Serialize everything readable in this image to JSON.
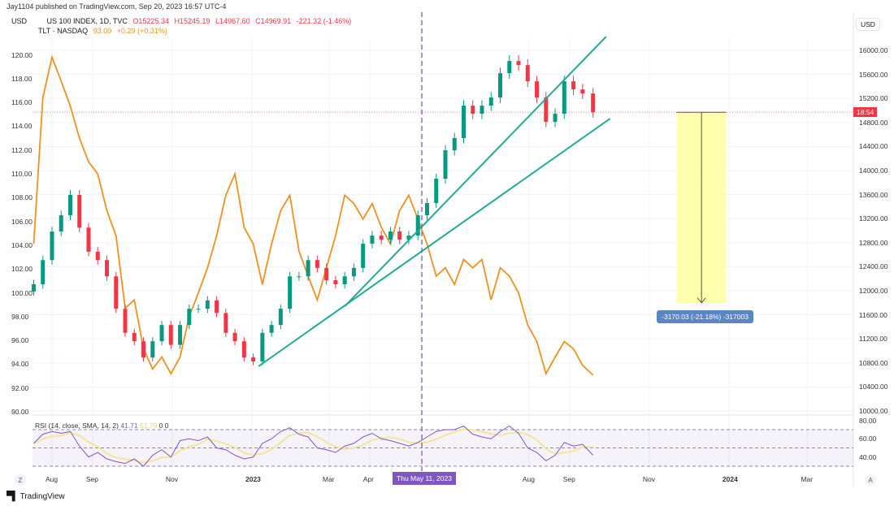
{
  "header": {
    "published": "Jay1104 published on TradingView.com, Sep 20, 2023 16:57 UTC-4",
    "currency_left": "USD",
    "currency_right": "USD",
    "main_symbol": "US 100 INDEX, 1D, TVC",
    "ohlc": {
      "o": "O15225.34",
      "h": "H15245.19",
      "l": "L14967.60",
      "c": "C14969.91",
      "change": "-221.32 (-1.46%)"
    },
    "compare_symbol": "TLT · NASDAQ",
    "compare_price": "93.09",
    "compare_change": "+0.29 (+0.31%)"
  },
  "footer": {
    "logo_text": "TradingView",
    "zoom_btn": "Z",
    "auto_btn": "A"
  },
  "colors": {
    "up": "#089981",
    "down": "#f23645",
    "tlt": "#f0901e",
    "trendline": "#22ab94",
    "rsi": "#7e57c2",
    "rsi_sma": "#f3e59a",
    "measure_fill": "#ffff99",
    "measure_label": "#5b86c4"
  },
  "chart_data": {
    "type": "line",
    "grid": true,
    "left_axis": {
      "label": "",
      "ticks": [
        "90.00",
        "92.00",
        "94.00",
        "96.00",
        "98.00",
        "100.00",
        "102.00",
        "104.00",
        "106.00",
        "108.00",
        "110.00",
        "112.00",
        "114.00",
        "116.00",
        "118.00",
        "120.00"
      ],
      "range": [
        90,
        120
      ]
    },
    "right_axis": {
      "ticks": [
        "10000.00",
        "10400.00",
        "10800.00",
        "11200.00",
        "11600.00",
        "12000.00",
        "12400.00",
        "12800.00",
        "13200.00",
        "13600.00",
        "14000.00",
        "14400.00",
        "14800.00",
        "15200.00",
        "15600.00",
        "16000.00"
      ],
      "range": [
        10000,
        16000
      ],
      "last_price_badge": "18:54"
    },
    "x_axis": {
      "ticks": [
        {
          "label": "Aug",
          "date": "2022-08-01"
        },
        {
          "label": "Sep",
          "date": "2022-09-01"
        },
        {
          "label": "Nov",
          "date": "2022-11-01"
        },
        {
          "label": "2023",
          "date": "2023-01-01",
          "bold": true
        },
        {
          "label": "Mar",
          "date": "2023-03-01"
        },
        {
          "label": "Apr",
          "date": "2023-04-01"
        },
        {
          "label": "Aug",
          "date": "2023-08-01"
        },
        {
          "label": "Sep",
          "date": "2023-09-01"
        },
        {
          "label": "Nov",
          "date": "2023-11-01"
        },
        {
          "label": "2024",
          "date": "2024-01-01",
          "bold": true
        },
        {
          "label": "Mar",
          "date": "2024-03-01"
        }
      ],
      "crosshair_date": "2023-05-11",
      "crosshair_label": "Thu May 11, 2023"
    },
    "dates": [
      "2022-07-18",
      "2022-07-25",
      "2022-08-01",
      "2022-08-08",
      "2022-08-15",
      "2022-08-22",
      "2022-08-29",
      "2022-09-05",
      "2022-09-12",
      "2022-09-19",
      "2022-09-26",
      "2022-10-03",
      "2022-10-10",
      "2022-10-17",
      "2022-10-24",
      "2022-10-31",
      "2022-11-07",
      "2022-11-14",
      "2022-11-21",
      "2022-11-28",
      "2022-12-05",
      "2022-12-12",
      "2022-12-19",
      "2022-12-26",
      "2023-01-02",
      "2023-01-09",
      "2023-01-16",
      "2023-01-23",
      "2023-01-30",
      "2023-02-06",
      "2023-02-13",
      "2023-02-20",
      "2023-02-27",
      "2023-03-06",
      "2023-03-13",
      "2023-03-20",
      "2023-03-27",
      "2023-04-03",
      "2023-04-10",
      "2023-04-17",
      "2023-04-24",
      "2023-05-01",
      "2023-05-08",
      "2023-05-15",
      "2023-05-22",
      "2023-05-29",
      "2023-06-05",
      "2023-06-12",
      "2023-06-19",
      "2023-06-26",
      "2023-07-03",
      "2023-07-10",
      "2023-07-17",
      "2023-07-24",
      "2023-07-31",
      "2023-08-07",
      "2023-08-14",
      "2023-08-21",
      "2023-08-28",
      "2023-09-04",
      "2023-09-11",
      "2023-09-19"
    ],
    "series": [
      {
        "name": "US 100 INDEX",
        "axis": "right",
        "style": "candles",
        "values": [
          12108,
          12510,
          12986,
          13256,
          13594,
          13050,
          12650,
          12510,
          12240,
          11700,
          11300,
          11160,
          10890,
          11160,
          11430,
          11100,
          11430,
          11700,
          11700,
          11840,
          11630,
          11300,
          11160,
          10890,
          10824,
          11300,
          11430,
          11700,
          12240,
          12240,
          12510,
          12380,
          12175,
          12108,
          12240,
          12380,
          12783,
          12918,
          12850,
          12986,
          12850,
          12918,
          13256,
          13459,
          13864,
          14337,
          14540,
          15080,
          14945,
          15080,
          15215,
          15620,
          15823,
          15755,
          15485,
          15215,
          14810,
          14945,
          15485,
          15350,
          15283,
          14970
        ]
      },
      {
        "name": "TLT · NASDAQ",
        "axis": "left",
        "style": "line",
        "values": [
          104.1,
          116.4,
          119.8,
          117.8,
          115.7,
          113.0,
          111.0,
          110.0,
          106.9,
          104.8,
          98.7,
          99.4,
          95.3,
          93.6,
          94.6,
          93.2,
          94.6,
          98.0,
          100.0,
          102.1,
          104.8,
          108.2,
          110.0,
          105.5,
          104.1,
          100.7,
          104.1,
          106.9,
          108.2,
          103.5,
          101.4,
          99.4,
          102.1,
          104.8,
          108.2,
          107.5,
          106.2,
          107.5,
          105.5,
          104.1,
          106.9,
          108.2,
          106.2,
          104.1,
          101.4,
          102.1,
          100.7,
          102.8,
          102.1,
          102.8,
          99.4,
          102.1,
          101.4,
          100.0,
          97.3,
          95.9,
          93.2,
          94.6,
          95.9,
          95.3,
          93.9,
          93.09
        ]
      }
    ],
    "trendlines": [
      {
        "from": {
          "date": "2023-01-06",
          "value": 10743
        },
        "to": {
          "date": "2023-10-02",
          "value": 14864
        }
      },
      {
        "from": {
          "date": "2023-03-13",
          "value": 11743
        },
        "to": {
          "date": "2023-09-29",
          "value": 16228
        }
      }
    ],
    "measure": {
      "from_date": "2023-11-22",
      "to_date": "2023-12-30",
      "from_value": 14969.91,
      "to_value": 11799.88,
      "label": "-3170.03 (-21.18%) -317003"
    },
    "rsi": {
      "title": "RSI (14, close, SMA, 14, 2)",
      "value": "41.71",
      "sma_value": "51.79",
      "extra": "0 0",
      "ticks": [
        "80.00",
        "60.00",
        "40.00"
      ],
      "bands": [
        30,
        50,
        70
      ],
      "values": [
        55,
        65,
        68,
        66,
        68,
        52,
        40,
        45,
        38,
        35,
        33,
        38,
        30,
        42,
        48,
        40,
        58,
        60,
        58,
        62,
        50,
        48,
        42,
        38,
        40,
        55,
        60,
        68,
        72,
        65,
        62,
        50,
        48,
        45,
        52,
        55,
        62,
        66,
        60,
        58,
        55,
        52,
        56,
        62,
        68,
        70,
        70,
        74,
        65,
        62,
        60,
        68,
        74,
        66,
        50,
        45,
        36,
        42,
        56,
        52,
        54,
        42
      ]
    }
  }
}
